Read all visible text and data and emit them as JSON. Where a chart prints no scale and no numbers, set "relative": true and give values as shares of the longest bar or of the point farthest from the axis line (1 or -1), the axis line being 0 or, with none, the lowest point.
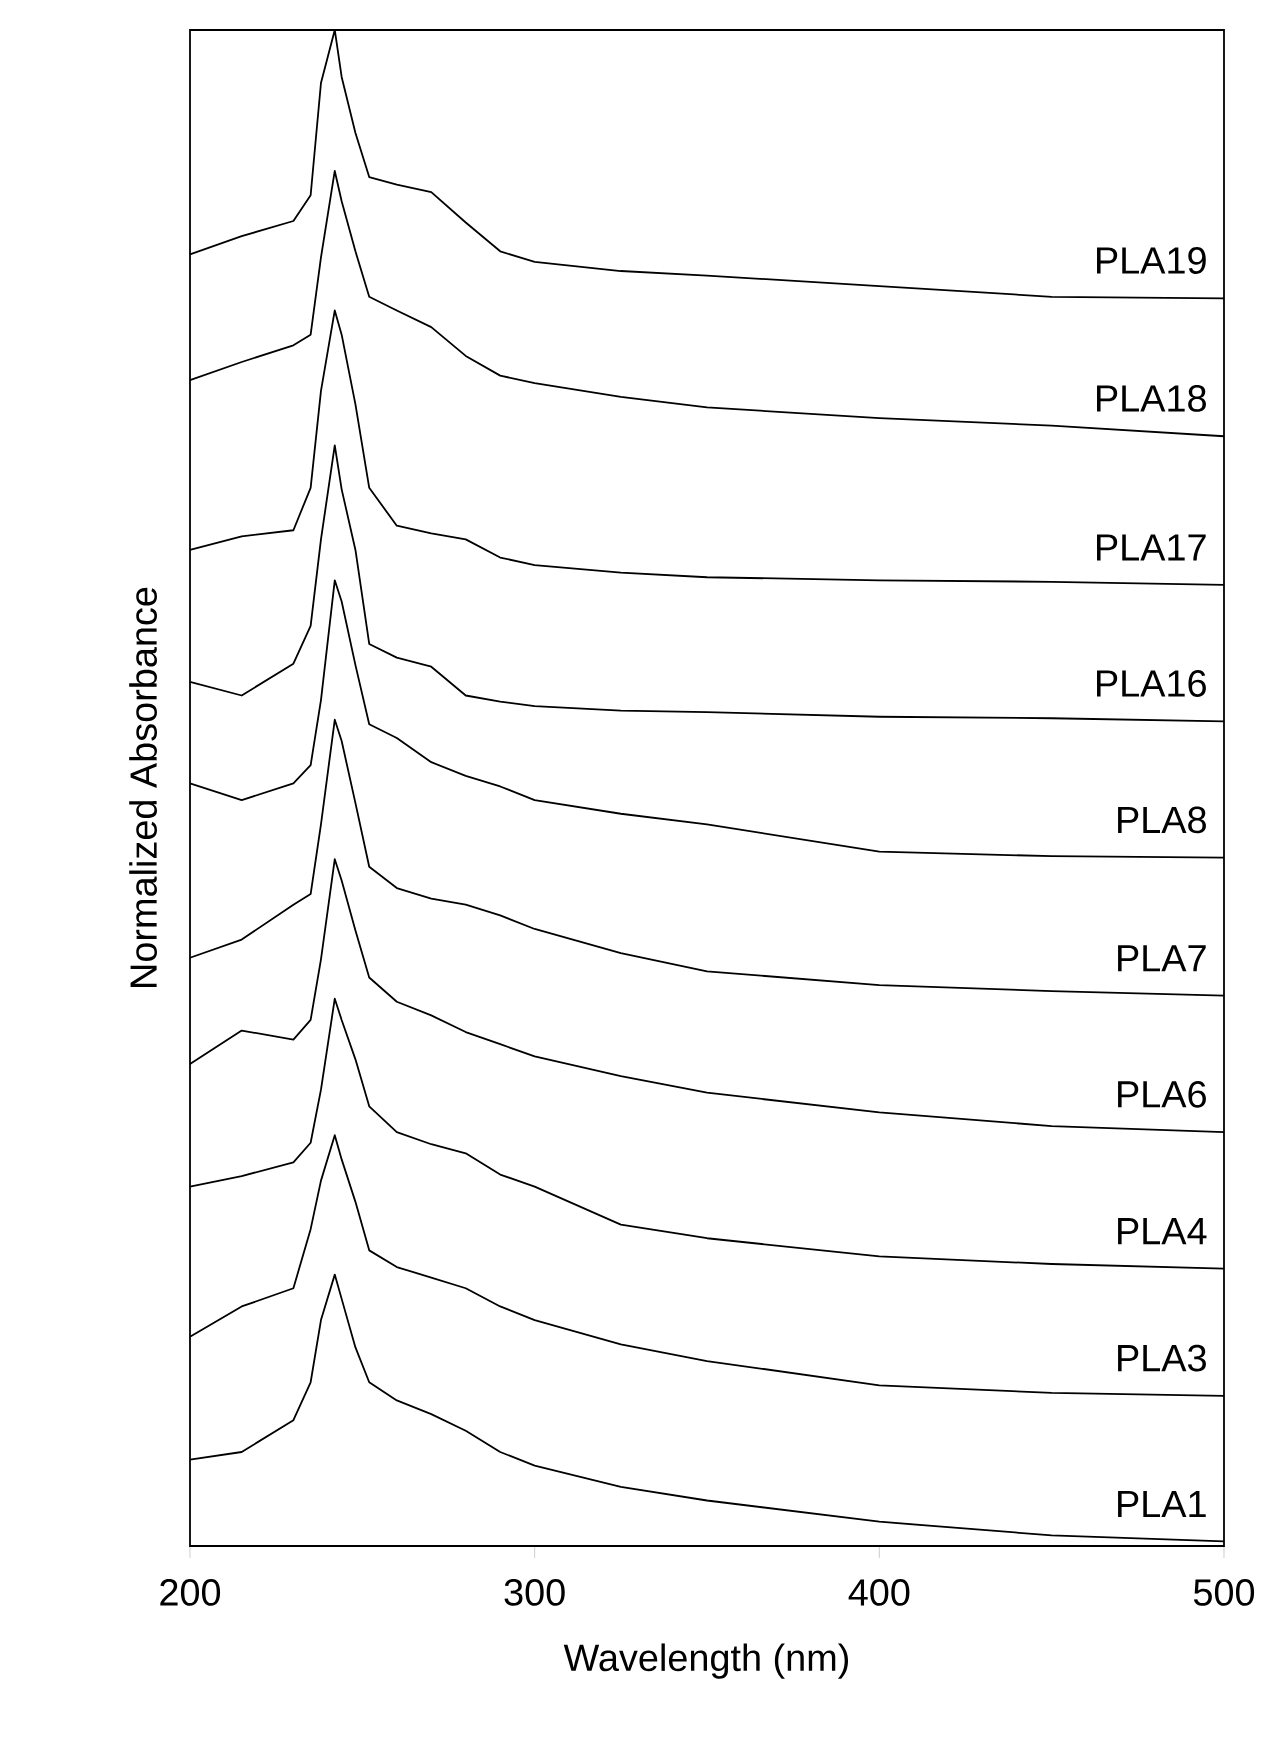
{
  "chart_data": {
    "type": "line",
    "xlabel": "Wavelength (nm)",
    "ylabel": "Normalized Absorbance",
    "relative": true,
    "xlim": [
      200,
      500
    ],
    "xticks": [
      200,
      300,
      400,
      500
    ],
    "x": [
      200,
      215,
      230,
      235,
      238,
      242,
      244,
      248,
      252,
      260,
      270,
      280,
      290,
      300,
      325,
      350,
      400,
      450,
      500
    ],
    "series": [
      {
        "name": "PLA19",
        "color": "#000000",
        "values": [
          0.852,
          0.864,
          0.874,
          0.891,
          0.965,
          1.0,
          0.969,
          0.932,
          0.903,
          0.898,
          0.893,
          0.873,
          0.854,
          0.847,
          0.841,
          0.838,
          0.831,
          0.824,
          0.823
        ]
      },
      {
        "name": "PLA18",
        "color": "#000000",
        "values": [
          0.769,
          0.781,
          0.792,
          0.799,
          0.85,
          0.907,
          0.887,
          0.854,
          0.824,
          0.815,
          0.804,
          0.785,
          0.772,
          0.767,
          0.758,
          0.751,
          0.744,
          0.739,
          0.732
        ]
      },
      {
        "name": "PLA17",
        "color": "#000000",
        "values": [
          0.657,
          0.666,
          0.67,
          0.698,
          0.762,
          0.815,
          0.799,
          0.753,
          0.698,
          0.673,
          0.668,
          0.664,
          0.652,
          0.647,
          0.642,
          0.639,
          0.637,
          0.636,
          0.634
        ]
      },
      {
        "name": "PLA16",
        "color": "#000000",
        "values": [
          0.57,
          0.561,
          0.582,
          0.607,
          0.664,
          0.726,
          0.697,
          0.657,
          0.595,
          0.586,
          0.58,
          0.561,
          0.557,
          0.554,
          0.551,
          0.55,
          0.547,
          0.546,
          0.544
        ]
      },
      {
        "name": "PLA8",
        "color": "#000000",
        "values": [
          0.503,
          0.492,
          0.503,
          0.515,
          0.558,
          0.637,
          0.623,
          0.581,
          0.542,
          0.533,
          0.517,
          0.508,
          0.501,
          0.492,
          0.483,
          0.476,
          0.458,
          0.455,
          0.454
        ]
      },
      {
        "name": "PLA7",
        "color": "#000000",
        "values": [
          0.388,
          0.4,
          0.423,
          0.43,
          0.476,
          0.545,
          0.531,
          0.49,
          0.448,
          0.434,
          0.427,
          0.423,
          0.416,
          0.407,
          0.391,
          0.379,
          0.37,
          0.366,
          0.363
        ]
      },
      {
        "name": "PLA6",
        "color": "#000000",
        "values": [
          0.318,
          0.34,
          0.334,
          0.347,
          0.387,
          0.453,
          0.439,
          0.406,
          0.375,
          0.359,
          0.35,
          0.339,
          0.331,
          0.323,
          0.31,
          0.299,
          0.286,
          0.277,
          0.273
        ]
      },
      {
        "name": "PLA4",
        "color": "#000000",
        "values": [
          0.237,
          0.244,
          0.253,
          0.266,
          0.301,
          0.361,
          0.347,
          0.321,
          0.29,
          0.273,
          0.265,
          0.259,
          0.245,
          0.237,
          0.212,
          0.203,
          0.191,
          0.186,
          0.183
        ]
      },
      {
        "name": "PLA3",
        "color": "#000000",
        "values": [
          0.138,
          0.158,
          0.17,
          0.209,
          0.241,
          0.271,
          0.255,
          0.227,
          0.195,
          0.184,
          0.177,
          0.17,
          0.158,
          0.149,
          0.133,
          0.122,
          0.106,
          0.101,
          0.099
        ]
      },
      {
        "name": "PLA1",
        "color": "#000000",
        "values": [
          0.057,
          0.062,
          0.083,
          0.108,
          0.149,
          0.179,
          0.163,
          0.131,
          0.108,
          0.096,
          0.087,
          0.076,
          0.062,
          0.053,
          0.039,
          0.03,
          0.016,
          0.007,
          0.003
        ]
      }
    ]
  }
}
